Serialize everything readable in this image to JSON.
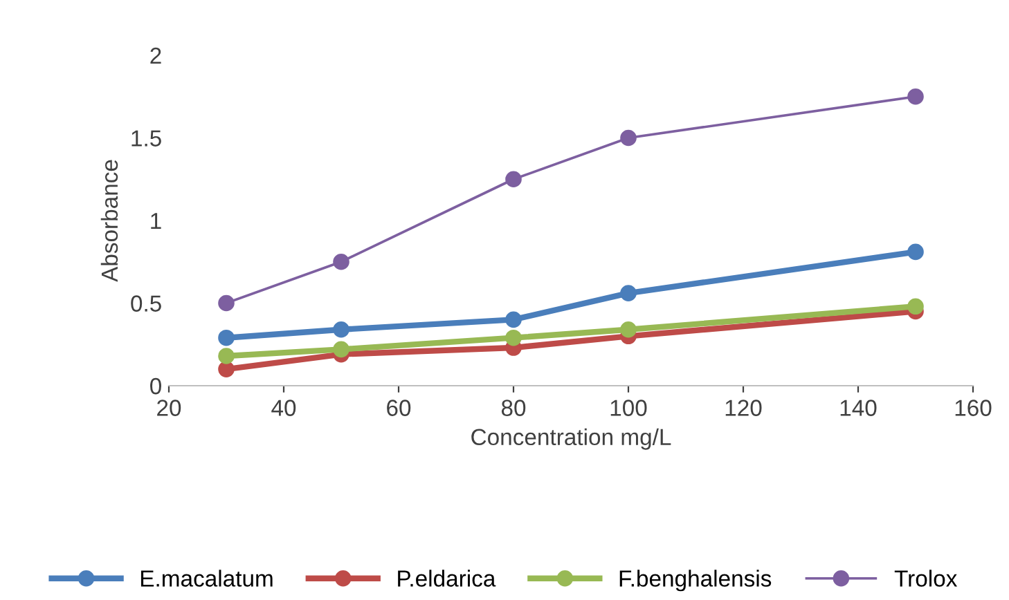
{
  "chart_data": {
    "type": "line",
    "xlabel": "Concentration mg/L",
    "ylabel": "Absorbance",
    "x": [
      30,
      50,
      80,
      100,
      150
    ],
    "series": [
      {
        "name": "E.macalatum",
        "color": "#4a7ebb",
        "values": [
          0.29,
          0.34,
          0.4,
          0.56,
          0.81
        ]
      },
      {
        "name": "P.eldarica",
        "color": "#be4b48",
        "values": [
          0.1,
          0.19,
          0.23,
          0.3,
          0.45
        ]
      },
      {
        "name": "F.benghalensis",
        "color": "#98b954",
        "values": [
          0.18,
          0.22,
          0.29,
          0.34,
          0.48
        ]
      },
      {
        "name": "Trolox",
        "color": "#7d5fa0",
        "values": [
          0.5,
          0.75,
          1.25,
          1.5,
          1.75
        ]
      }
    ],
    "xlim": [
      20,
      160
    ],
    "xticks": [
      20,
      40,
      60,
      80,
      100,
      120,
      140,
      160
    ],
    "ylim": [
      0,
      2
    ],
    "yticks": [
      0,
      0.5,
      1,
      1.5,
      2
    ],
    "marker": "circle",
    "line_style": "solid",
    "legend": "bottom",
    "grid": false
  }
}
